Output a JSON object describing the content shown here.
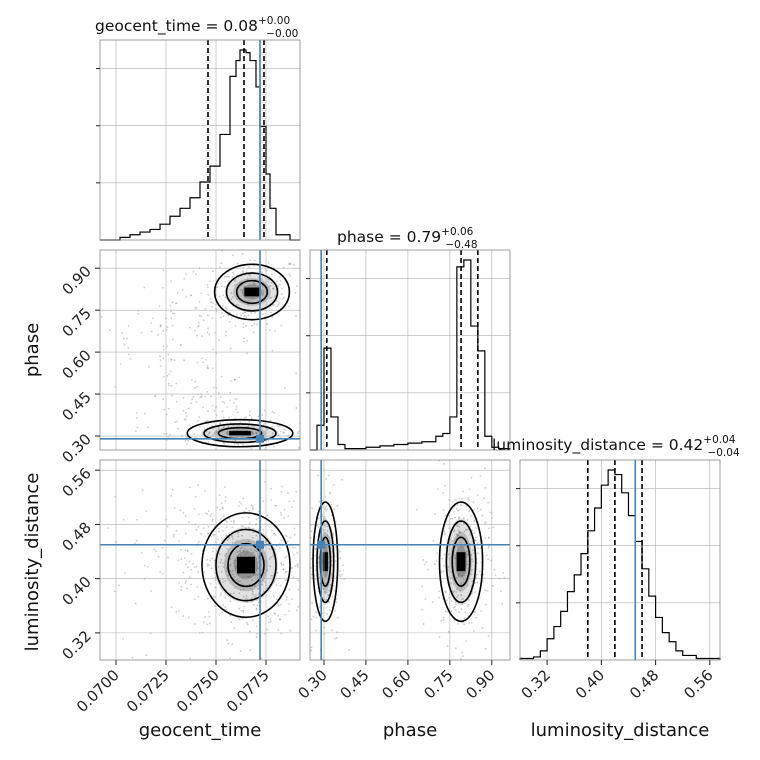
{
  "chart_data": {
    "type": "corner",
    "colors": {
      "truth": "#4682b4",
      "hist": "#000000",
      "grid": "#b0b0b0",
      "frame": "#888888",
      "points": "#9a9a9a"
    },
    "parameters": [
      {
        "name": "geocent_time",
        "range": [
          0.0692,
          0.0792
        ],
        "ticks": [
          "0.0700",
          "0.0725",
          "0.0750",
          "0.0775"
        ],
        "median": 0.0764,
        "low": 0.0746,
        "high": 0.0774,
        "truth": 0.0772,
        "title": {
          "main": "geocent_time = 0.08",
          "sup": "+0.00",
          "sub": "−0.00"
        },
        "hist_edges": [
          0.0692,
          0.0702,
          0.0707,
          0.0712,
          0.0717,
          0.0722,
          0.0727,
          0.0732,
          0.0737,
          0.0742,
          0.0747,
          0.0752,
          0.0757,
          0.076,
          0.0762,
          0.0765,
          0.0767,
          0.077,
          0.0772,
          0.0775,
          0.0777,
          0.078,
          0.0787,
          0.0792
        ],
        "hist_counts": [
          0,
          1,
          2,
          3,
          4,
          6,
          9,
          12,
          16,
          22,
          28,
          40,
          62,
          68,
          72,
          71,
          68,
          58,
          43,
          25,
          12,
          2,
          0
        ]
      },
      {
        "name": "phase",
        "range": [
          0.25,
          0.965
        ],
        "ticks": [
          "0.30",
          "0.45",
          "0.60",
          "0.75",
          "0.90"
        ],
        "median": 0.79,
        "low": 0.31,
        "high": 0.85,
        "truth": 0.29,
        "title": {
          "main": "phase = 0.79",
          "sup": "+0.06",
          "sub": "−0.48"
        },
        "hist_edges": [
          0.25,
          0.275,
          0.3,
          0.325,
          0.35,
          0.375,
          0.4,
          0.45,
          0.5,
          0.55,
          0.6,
          0.65,
          0.7,
          0.725,
          0.75,
          0.775,
          0.8,
          0.825,
          0.85,
          0.875,
          0.9,
          0.925,
          0.965
        ],
        "hist_counts": [
          0,
          18,
          74,
          24,
          4,
          1,
          1,
          2,
          3,
          4,
          5,
          6,
          10,
          12,
          24,
          133,
          138,
          90,
          72,
          10,
          2,
          1
        ]
      },
      {
        "name": "luminosity_distance",
        "range": [
          0.28,
          0.575
        ],
        "ticks": [
          "0.32",
          "0.40",
          "0.48",
          "0.56"
        ],
        "median": 0.42,
        "low": 0.38,
        "high": 0.46,
        "truth": 0.45,
        "title": {
          "main": "luminosity_distance = 0.42",
          "sup": "+0.04",
          "sub": "−0.04"
        },
        "hist_edges": [
          0.28,
          0.3,
          0.31,
          0.32,
          0.33,
          0.34,
          0.35,
          0.36,
          0.37,
          0.38,
          0.39,
          0.4,
          0.41,
          0.42,
          0.43,
          0.44,
          0.45,
          0.46,
          0.47,
          0.48,
          0.49,
          0.5,
          0.51,
          0.52,
          0.54,
          0.575
        ],
        "hist_counts": [
          1,
          2,
          6,
          14,
          22,
          32,
          45,
          56,
          70,
          85,
          100,
          115,
          125,
          122,
          110,
          95,
          78,
          60,
          42,
          28,
          18,
          12,
          6,
          3,
          1
        ]
      }
    ],
    "pairs": [
      {
        "x": "geocent_time",
        "y": "phase",
        "blobs": [
          {
            "cx": 0.0768,
            "cy": 0.815,
            "sx": 0.00085,
            "sy": 0.045,
            "w": 1.0
          },
          {
            "cx": 0.0762,
            "cy": 0.31,
            "sx": 0.0012,
            "sy": 0.022,
            "w": 0.9
          },
          {
            "cx": 0.0745,
            "cy": 0.72,
            "sx": 0.0015,
            "sy": 0.05,
            "w": 0.35
          },
          {
            "cx": 0.0725,
            "cy": 0.66,
            "sx": 0.0014,
            "sy": 0.04,
            "w": 0.25
          },
          {
            "cx": 0.0738,
            "cy": 0.47,
            "sx": 0.0011,
            "sy": 0.045,
            "w": 0.3
          },
          {
            "cx": 0.0748,
            "cy": 0.38,
            "sx": 0.0012,
            "sy": 0.03,
            "w": 0.25
          }
        ]
      },
      {
        "x": "geocent_time",
        "y": "luminosity_distance",
        "blobs": [
          {
            "cx": 0.0765,
            "cy": 0.42,
            "sx": 0.001,
            "sy": 0.035,
            "w": 1.0
          },
          {
            "cx": 0.0745,
            "cy": 0.43,
            "sx": 0.0022,
            "sy": 0.045,
            "w": 0.3
          }
        ]
      },
      {
        "x": "phase",
        "y": "luminosity_distance",
        "blobs": [
          {
            "cx": 0.79,
            "cy": 0.425,
            "sx": 0.035,
            "sy": 0.04,
            "w": 1.0
          },
          {
            "cx": 0.305,
            "cy": 0.425,
            "sx": 0.02,
            "sy": 0.04,
            "w": 0.7
          }
        ]
      }
    ]
  }
}
